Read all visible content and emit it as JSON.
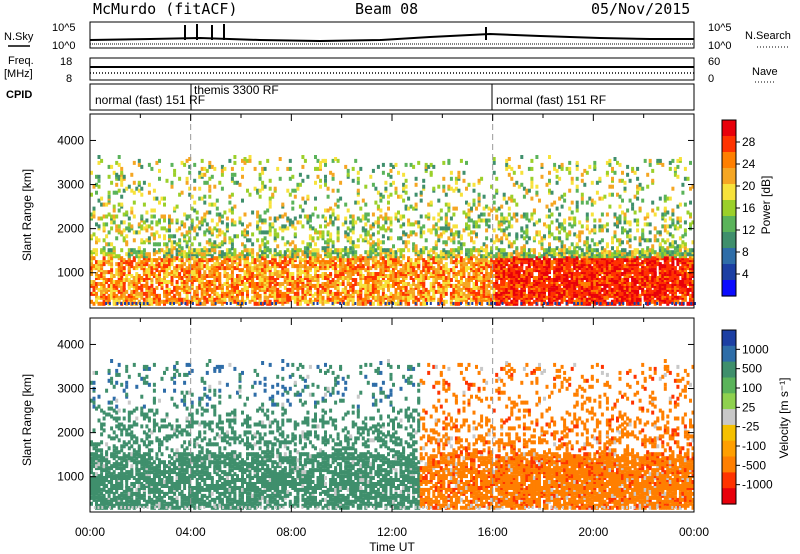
{
  "header": {
    "station": "McMurdo (fitACF)",
    "beam": "Beam 08",
    "date": "05/Nov/2015"
  },
  "left_labels": {
    "nsky": "N.Sky",
    "freq": "Freq.",
    "freq_unit": "[MHz]",
    "cpid": "CPID"
  },
  "right_labels": {
    "nsearch": "N.Search",
    "nave": "Nave"
  },
  "noise_axis": {
    "left_ticks": [
      "10^5",
      "10^0"
    ],
    "right_ticks": [
      "10^5",
      "10^0"
    ]
  },
  "freq_axis": {
    "left_ticks": [
      "18",
      "8"
    ],
    "right_ticks": [
      "60",
      "0"
    ]
  },
  "cpid_segments": [
    {
      "label": "normal (fast) 151 RF",
      "start": 0.0,
      "end": 16.0
    },
    {
      "label": "themis 3300 RF",
      "start": 4.0,
      "end": 4.0
    },
    {
      "label": "normal (fast) 151 RF",
      "start": 16.0,
      "end": 24.0
    }
  ],
  "chart_data": [
    {
      "type": "heatmap",
      "panel": "power",
      "xlabel": "",
      "ylabel": "Slant Range [km]",
      "xlim": [
        0,
        24
      ],
      "ylim": [
        200,
        4600
      ],
      "yticks": [
        1000,
        2000,
        3000,
        4000
      ],
      "colorbar": {
        "label": "Power [dB]",
        "ticks": [
          "28",
          "24",
          "20",
          "16",
          "12",
          "8",
          "4"
        ],
        "colors": [
          "#e8000b",
          "#ff3300",
          "#ff7f00",
          "#f5a623",
          "#f7e23b",
          "#9bd02a",
          "#5ab35a",
          "#3f8f6c",
          "#2e6da8",
          "#1c3fa3",
          "#0b0bff"
        ]
      }
    },
    {
      "type": "heatmap",
      "panel": "velocity",
      "xlabel": "Time UT",
      "ylabel": "Slant Range [km]",
      "xlim": [
        0,
        24
      ],
      "ylim": [
        200,
        4600
      ],
      "yticks": [
        1000,
        2000,
        3000,
        4000
      ],
      "xticks": [
        "00:00",
        "04:00",
        "08:00",
        "12:00",
        "16:00",
        "20:00",
        "00:00"
      ],
      "colorbar": {
        "label": "Velocity [m s^-1]",
        "ticks": [
          "1000",
          "500",
          "100",
          "25",
          "-25",
          "-100",
          "-500",
          "-1000"
        ],
        "colors": [
          "#1c3fa3",
          "#2e6da8",
          "#3f8f6c",
          "#5ab35a",
          "#8fd14f",
          "#c8c8c8",
          "#f5c000",
          "#ff9f00",
          "#ff7f00",
          "#ff3300",
          "#e8000b"
        ]
      }
    }
  ]
}
